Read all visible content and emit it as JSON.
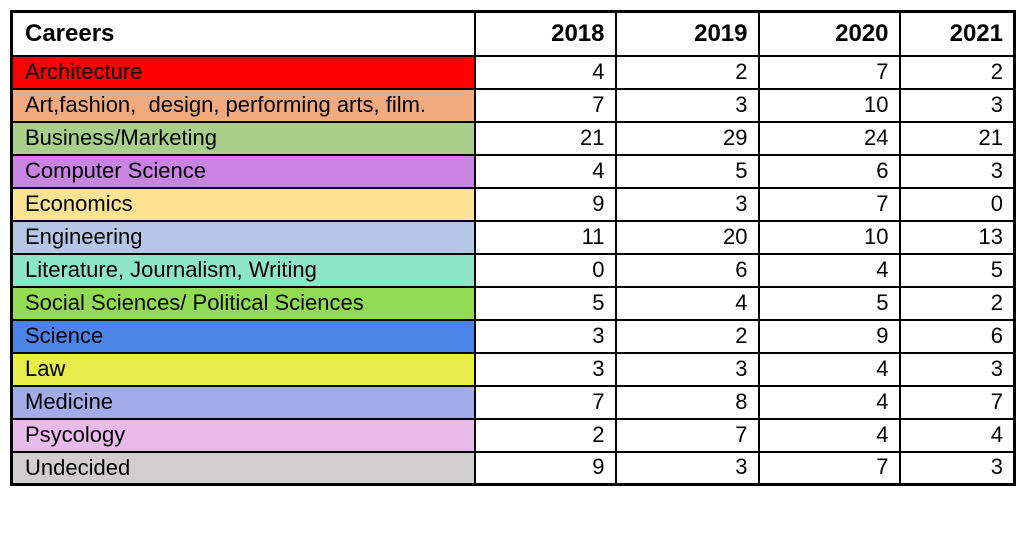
{
  "header": {
    "careers_label": "Careers",
    "years": [
      "2018",
      "2019",
      "2020",
      "2021"
    ]
  },
  "rows": [
    {
      "career": "Architecture",
      "color": "#FF0000",
      "values": [
        4,
        2,
        7,
        2
      ]
    },
    {
      "career": "Art,fashion,  design, performing arts, film.",
      "color": "#F1A97E",
      "values": [
        7,
        3,
        10,
        3
      ]
    },
    {
      "career": "Business/Marketing",
      "color": "#A9CF8C",
      "values": [
        21,
        29,
        24,
        21
      ]
    },
    {
      "career": "Computer Science",
      "color": "#C983E3",
      "values": [
        4,
        5,
        6,
        3
      ]
    },
    {
      "career": "Economics",
      "color": "#FCE394",
      "values": [
        9,
        3,
        7,
        0
      ]
    },
    {
      "career": "Engineering",
      "color": "#B4C7E7",
      "values": [
        11,
        20,
        10,
        13
      ]
    },
    {
      "career": "Literature, Journalism, Writing",
      "color": "#8FE5C8",
      "values": [
        0,
        6,
        4,
        5
      ]
    },
    {
      "career": "Social Sciences/ Political Sciences",
      "color": "#92DC55",
      "values": [
        5,
        4,
        5,
        2
      ]
    },
    {
      "career": "Science",
      "color": "#4A84E6",
      "values": [
        3,
        2,
        9,
        6
      ]
    },
    {
      "career": "Law",
      "color": "#E5EC4C",
      "values": [
        3,
        3,
        4,
        3
      ]
    },
    {
      "career": "Medicine",
      "color": "#A3ACE9",
      "values": [
        7,
        8,
        4,
        7
      ]
    },
    {
      "career": "Psycology",
      "color": "#E9BAEC",
      "values": [
        2,
        7,
        4,
        4
      ]
    },
    {
      "career": "Undecided",
      "color": "#D0CECE",
      "values": [
        9,
        3,
        7,
        3
      ]
    }
  ],
  "chart_data": {
    "type": "table",
    "title": "",
    "columns": [
      "Careers",
      "2018",
      "2019",
      "2020",
      "2021"
    ],
    "rows": [
      [
        "Architecture",
        4,
        2,
        7,
        2
      ],
      [
        "Art,fashion,  design, performing arts, film.",
        7,
        3,
        10,
        3
      ],
      [
        "Business/Marketing",
        21,
        29,
        24,
        21
      ],
      [
        "Computer Science",
        4,
        5,
        6,
        3
      ],
      [
        "Economics",
        9,
        3,
        7,
        0
      ],
      [
        "Engineering",
        11,
        20,
        10,
        13
      ],
      [
        "Literature, Journalism, Writing",
        0,
        6,
        4,
        5
      ],
      [
        "Social Sciences/ Political Sciences",
        5,
        4,
        5,
        2
      ],
      [
        "Science",
        3,
        2,
        9,
        6
      ],
      [
        "Law",
        3,
        3,
        4,
        3
      ],
      [
        "Medicine",
        7,
        8,
        4,
        7
      ],
      [
        "Psycology",
        2,
        7,
        4,
        4
      ],
      [
        "Undecided",
        9,
        3,
        7,
        3
      ]
    ],
    "row_colors": [
      "#FF0000",
      "#F1A97E",
      "#A9CF8C",
      "#C983E3",
      "#FCE394",
      "#B4C7E7",
      "#8FE5C8",
      "#92DC55",
      "#4A84E6",
      "#E5EC4C",
      "#A3ACE9",
      "#E9BAEC",
      "#D0CECE"
    ],
    "header_background": "#FFFFFF",
    "value_cell_background": "#FFFFFF",
    "border_color": "#000000",
    "grid": true,
    "value_alignment": "right"
  }
}
